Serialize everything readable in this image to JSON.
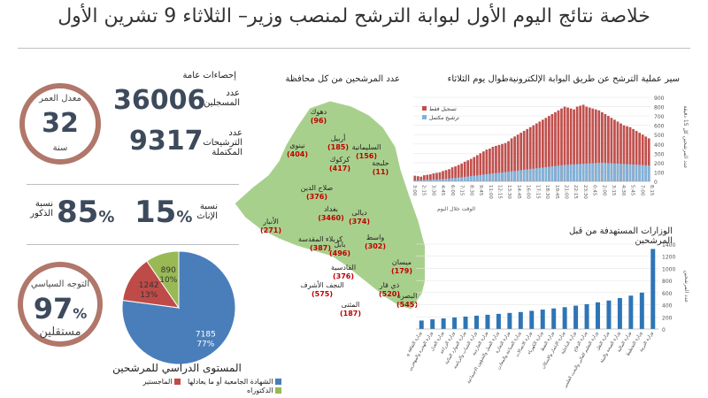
{
  "title": "خلاصة نتائج اليوم الأول لبوابة الترشح لمنصب وزير– الثلاثاء 9 تشرين الأول",
  "stats": {
    "heading": "إحصاءات عامة",
    "registered_value": "36006",
    "registered_label_1": "عدد",
    "registered_label_2": "المسجلين",
    "completed_value": "9317",
    "completed_label_1": "عدد",
    "completed_label_2": "الترشيحات",
    "completed_label_3": "المكتملة",
    "age_label": "معدل العمر",
    "age_value": "32",
    "age_unit": "سنة",
    "male_label_1": "نسبة",
    "male_label_2": "الذكور",
    "male_value": "85",
    "female_label_1": "نسبة",
    "female_label_2": "الإناث",
    "female_value": "15",
    "pct": "%",
    "pol_label": "التوجه السياسي",
    "pol_value": "97",
    "pol_unit": "مستقلين"
  },
  "colors": {
    "ring": "#b0776a",
    "map": "#a8d08d",
    "bar_blue": "#2e75b6",
    "red": "#c0504d",
    "series_blue": "#7fb2d9",
    "pie_blue": "#4a7ebb",
    "pie_red": "#be4b48",
    "pie_green": "#98b954"
  },
  "chart_data": [
    {
      "type": "pie",
      "title": "المستوى الدراسي للمرشحين",
      "slices": [
        {
          "name": "الشهادة الجامعية أو ما يعادلها",
          "value": 7185,
          "percent": "77%",
          "color": "#4a7ebb"
        },
        {
          "name": "الماجستير",
          "value": 1242,
          "percent": "13%",
          "color": "#be4b48"
        },
        {
          "name": "الدكتوراه",
          "value": 890,
          "percent": "10%",
          "color": "#98b954"
        }
      ]
    },
    {
      "type": "map",
      "title": "عدد المرشحين من كل محافظة",
      "labels": [
        {
          "name": "دهوك",
          "value": "(96)"
        },
        {
          "name": "أربيل",
          "value": "(185)"
        },
        {
          "name": "نينوى",
          "value": "(404)"
        },
        {
          "name": "السليمانية",
          "value": "(156)"
        },
        {
          "name": "كركوك",
          "value": "(417)"
        },
        {
          "name": "حلبجة",
          "value": "(11)"
        },
        {
          "name": "صلاح الدين",
          "value": "(376)"
        },
        {
          "name": "ديالى",
          "value": "(374)"
        },
        {
          "name": "بغداد",
          "value": "(3460)"
        },
        {
          "name": "الأنبار",
          "value": "(271)"
        },
        {
          "name": "واسط",
          "value": "(302)"
        },
        {
          "name": "كربلاء المقدسة",
          "value": "(387)"
        },
        {
          "name": "بابل",
          "value": "(496)"
        },
        {
          "name": "القادسية",
          "value": "(376)"
        },
        {
          "name": "ميسان",
          "value": "(179)"
        },
        {
          "name": "النجف الأشرف",
          "value": "(575)"
        },
        {
          "name": "ذي قار",
          "value": "(520)"
        },
        {
          "name": "البصرة",
          "value": "(545)"
        },
        {
          "name": "المثنى",
          "value": "(187)"
        }
      ]
    },
    {
      "type": "bar",
      "title": "سير عملية الترشح عن طريق البوابة الإلكترونيةطوال يوم الثلاثاء",
      "ylabel": "عدد المرشحين كل 15 دقيقة",
      "xlabel": "الوقت خلال اليوم",
      "ylim": [
        0,
        900
      ],
      "yticks": [
        0,
        100,
        200,
        300,
        400,
        500,
        600,
        700,
        800,
        900
      ],
      "xticks": [
        "3:00",
        "2:15",
        "3:30",
        "4:45",
        "6:00",
        "7:15",
        "8:30",
        "9:45",
        "11:00",
        "12:15",
        "13:30",
        "14:45",
        "16:00",
        "17:15",
        "18:30",
        "19:45",
        "21:00",
        "22:15",
        "23:30",
        "0:45",
        "2:00",
        "3:15",
        "4:30",
        "5:45",
        "7:00",
        "8:15"
      ],
      "series_names": [
        "تسجيل فقط",
        "ترشيح مكتمل"
      ],
      "series_total": [
        60,
        55,
        50,
        65,
        70,
        75,
        85,
        90,
        95,
        110,
        120,
        130,
        150,
        160,
        175,
        190,
        210,
        225,
        240,
        260,
        280,
        300,
        320,
        340,
        350,
        370,
        380,
        390,
        400,
        410,
        430,
        460,
        480,
        500,
        520,
        540,
        560,
        580,
        600,
        620,
        640,
        660,
        680,
        700,
        720,
        740,
        760,
        780,
        800,
        790,
        780,
        770,
        800,
        810,
        820,
        800,
        790,
        780,
        770,
        760,
        740,
        720,
        700,
        680,
        660,
        640,
        620,
        600,
        590,
        580,
        560,
        540,
        520,
        500,
        480,
        460
      ],
      "series_complete": [
        10,
        10,
        12,
        14,
        15,
        16,
        18,
        20,
        22,
        25,
        28,
        30,
        34,
        38,
        40,
        44,
        48,
        52,
        56,
        60,
        64,
        68,
        72,
        76,
        80,
        84,
        88,
        92,
        96,
        100,
        104,
        108,
        112,
        116,
        120,
        124,
        128,
        132,
        136,
        140,
        144,
        148,
        152,
        156,
        160,
        164,
        168,
        172,
        176,
        178,
        180,
        182,
        184,
        186,
        188,
        190,
        192,
        194,
        196,
        198,
        200,
        198,
        196,
        194,
        192,
        190,
        188,
        186,
        184,
        182,
        180,
        178,
        176,
        174,
        172,
        170
      ]
    },
    {
      "type": "bar",
      "title": "الوزارات المستهدفة من قبل المرشحين",
      "ylabel": "عدد المرشحين",
      "ylim": [
        0,
        1400
      ],
      "yticks": [
        0,
        200,
        400,
        600,
        800,
        1000,
        1200,
        1400
      ],
      "categories": [
        "وزارة الثقافة والسياحة والآثار",
        "وزارة الهجرة والمهجرين",
        "وزارة العدل",
        "وزارة الزراعة",
        "وزارة الموارد المائية",
        "وزارة الشباب والرياضة",
        "وزارة الخارجية",
        "وزارة العمل والشؤون الاجتماعية",
        "وزارة التجارة",
        "وزارة الصناعة والمعادن",
        "وزارة الاتصالات",
        "وزارة الكهرباء",
        "وزارة النفط",
        "وزارة الإعمار والإسكان",
        "وزارة الداخلية",
        "وزارة الدفاع",
        "وزارة التعليم العالي والبحث العلمي",
        "وزارة النقل",
        "وزارة الصحة والبيئة",
        "وزارة المالية",
        "وزارة التخطيط",
        "وزارة التربية"
      ],
      "values": [
        140,
        160,
        175,
        190,
        205,
        220,
        235,
        250,
        265,
        280,
        300,
        320,
        340,
        360,
        385,
        410,
        440,
        470,
        510,
        550,
        600,
        1320
      ]
    }
  ]
}
